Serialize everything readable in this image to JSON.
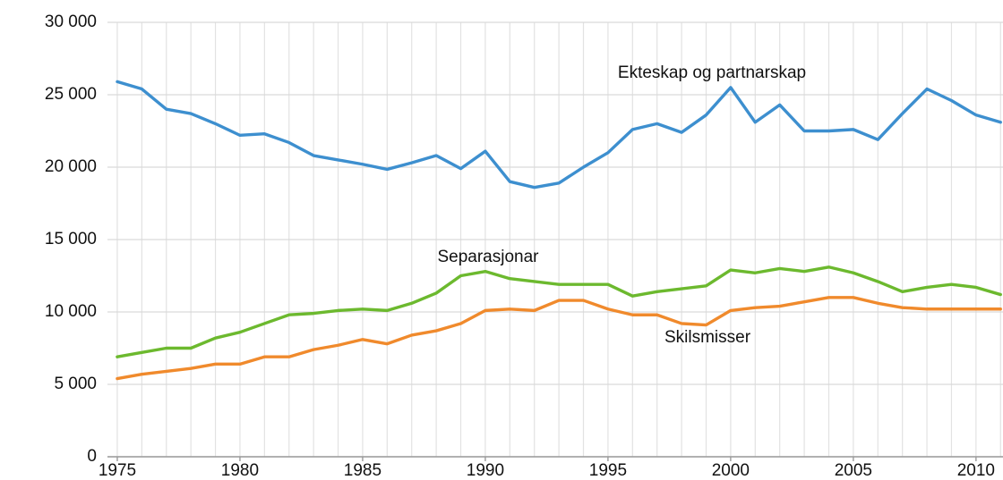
{
  "chart_data": {
    "type": "line",
    "x": [
      1975,
      1976,
      1977,
      1978,
      1979,
      1980,
      1981,
      1982,
      1983,
      1984,
      1985,
      1986,
      1987,
      1988,
      1989,
      1990,
      1991,
      1992,
      1993,
      1994,
      1995,
      1996,
      1997,
      1998,
      1999,
      2000,
      2001,
      2002,
      2003,
      2004,
      2005,
      2006,
      2007,
      2008,
      2009,
      2010,
      2011
    ],
    "series": [
      {
        "name": "Ekteskap og partnarskap",
        "color": "#3d8fcf",
        "values": [
          25900,
          25400,
          24000,
          23700,
          23000,
          22200,
          22300,
          21700,
          20800,
          20500,
          20200,
          19850,
          20300,
          20800,
          19900,
          21100,
          19000,
          18600,
          18900,
          20000,
          21000,
          22600,
          23000,
          22400,
          23600,
          25500,
          23100,
          24300,
          22500,
          22500,
          22600,
          21900,
          23700,
          25400,
          24600,
          23600,
          23100
        ]
      },
      {
        "name": "Separasjonar",
        "color": "#6cb92e",
        "values": [
          6900,
          7200,
          7500,
          7500,
          8200,
          8600,
          9200,
          9800,
          9900,
          10100,
          10200,
          10100,
          10600,
          11300,
          12500,
          12800,
          12300,
          12100,
          11900,
          11900,
          11900,
          11100,
          11400,
          11600,
          11800,
          12900,
          12700,
          13000,
          12800,
          13100,
          12700,
          12100,
          11400,
          11700,
          11900,
          11700,
          11200
        ]
      },
      {
        "name": "Skilsmisser",
        "color": "#f08a2c",
        "values": [
          5400,
          5700,
          5900,
          6100,
          6400,
          6400,
          6900,
          6900,
          7400,
          7700,
          8100,
          7800,
          8400,
          8700,
          9200,
          10100,
          10200,
          10100,
          10800,
          10800,
          10200,
          9800,
          9800,
          9200,
          9100,
          10100,
          10300,
          10400,
          10700,
          11000,
          11000,
          10600,
          10300,
          10200,
          10200,
          10200,
          10200
        ]
      }
    ],
    "xlim": [
      1974.6,
      2011.1
    ],
    "xticks": [
      1975,
      1980,
      1985,
      1990,
      1995,
      2000,
      2005,
      2010
    ],
    "ylim": [
      0,
      30000
    ],
    "yticks": [
      0,
      {
        "value": 5000,
        "label": "5 000"
      },
      {
        "value": 10000,
        "label": "10 000"
      },
      {
        "value": 15000,
        "label": "15 000"
      },
      {
        "value": 20000,
        "label": "20 000"
      },
      {
        "value": 25000,
        "label": "25 000"
      },
      {
        "value": 30000,
        "label": "30 000"
      }
    ],
    "grid": true
  }
}
